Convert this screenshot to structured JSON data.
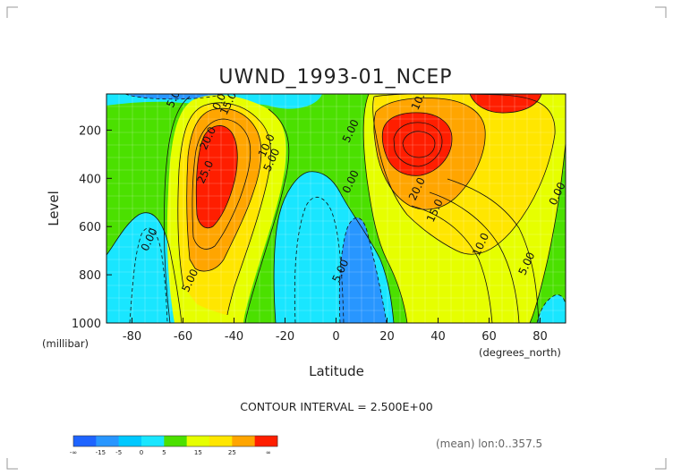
{
  "chart_data": {
    "type": "contour",
    "title": "UWND_1993-01_NCEP",
    "xlabel": "Latitude",
    "ylabel": "Level",
    "x_unit": "(degrees_north)",
    "y_unit": "(millibar)",
    "xlim": [
      -90,
      90
    ],
    "ylim": [
      1000,
      50
    ],
    "y_reversed": true,
    "x_ticks": [
      -80,
      -60,
      -40,
      -20,
      0,
      20,
      40,
      60,
      80
    ],
    "y_ticks": [
      200,
      400,
      600,
      800,
      1000
    ],
    "contour_interval": "CONTOUR INTERVAL = 2.500E+00",
    "annotation": "(mean) lon:0..357.5",
    "colorbar": {
      "labels": [
        "-∞",
        "-15",
        "-5",
        "0",
        "5",
        "15",
        "25",
        "∞"
      ],
      "colors": [
        "#1e64ff",
        "#2896ff",
        "#00c8ff",
        "#19e6ff",
        "#4be000",
        "#e6ff00",
        "#ffe600",
        "#ffa500",
        "#ff1e00"
      ]
    },
    "contour_labels": [
      {
        "text": "5.00",
        "lat": -62,
        "lev": 65
      },
      {
        "text": "0.00",
        "lat": -44,
        "lev": 75
      },
      {
        "text": "15.0",
        "lat": -41,
        "lev": 95
      },
      {
        "text": "20.0",
        "lat": -49,
        "lev": 240
      },
      {
        "text": "25.0",
        "lat": -50,
        "lev": 380
      },
      {
        "text": "10.0",
        "lat": -26,
        "lev": 270
      },
      {
        "text": "5.00",
        "lat": -24,
        "lev": 330
      },
      {
        "text": "0.00",
        "lat": -72,
        "lev": 660
      },
      {
        "text": "5.00",
        "lat": -56,
        "lev": 830
      },
      {
        "text": "5.00",
        "lat": 7,
        "lev": 210
      },
      {
        "text": "0.00",
        "lat": 7,
        "lev": 420
      },
      {
        "text": "5.00",
        "lat": 3,
        "lev": 790
      },
      {
        "text": "10.0",
        "lat": 34,
        "lev": 75
      },
      {
        "text": "20.0",
        "lat": 33,
        "lev": 450
      },
      {
        "text": "15.0",
        "lat": 40,
        "lev": 540
      },
      {
        "text": "10.0",
        "lat": 58,
        "lev": 680
      },
      {
        "text": "5.00",
        "lat": 76,
        "lev": 760
      },
      {
        "text": "0.00",
        "lat": 88,
        "lev": 470
      }
    ]
  }
}
